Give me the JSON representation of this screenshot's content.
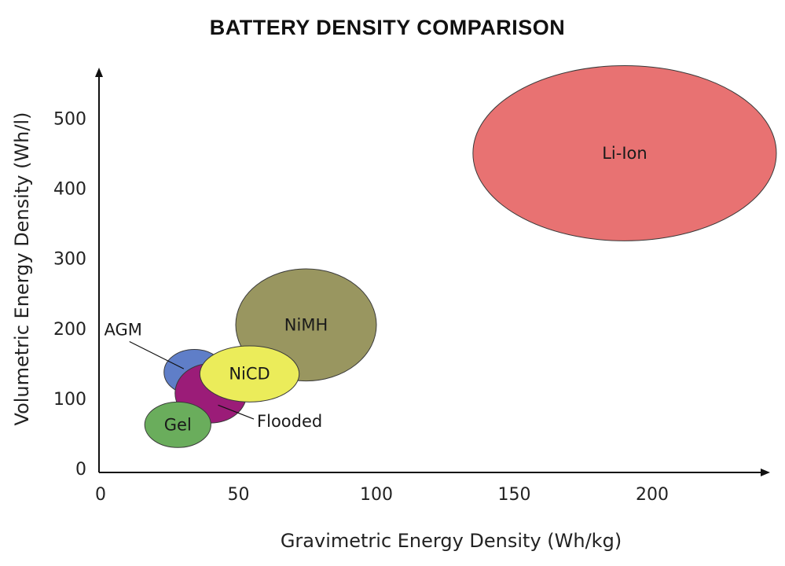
{
  "chart_data": {
    "type": "scatter",
    "title": "BATTERY DENSITY COMPARISON",
    "xlabel": "Gravimetric Energy Density (Wh/kg)",
    "ylabel": "Volumetric Energy Density (Wh/l)",
    "xlim": [
      0,
      245
    ],
    "ylim": [
      0,
      570
    ],
    "xticks": [
      0,
      50,
      100,
      150,
      200
    ],
    "yticks": [
      0,
      100,
      200,
      300,
      400,
      500
    ],
    "grid": false,
    "series": [
      {
        "name": "Li-Ion",
        "x_range": [
          135,
          245
        ],
        "y_range": [
          325,
          575
        ],
        "x": 190,
        "y": 450,
        "color": "#e87272",
        "label_pos": "center"
      },
      {
        "name": "NiMH",
        "x_range": [
          49,
          100
        ],
        "y_range": [
          125,
          285
        ],
        "x": 74.5,
        "y": 205,
        "color": "#999660",
        "label_pos": "center"
      },
      {
        "name": "AGM",
        "x_range": [
          23,
          45
        ],
        "y_range": [
          105,
          170
        ],
        "x": 34,
        "y": 137.5,
        "color": "#5f7ec8",
        "label_pos": "outside-left"
      },
      {
        "name": "Flooded",
        "x_range": [
          27,
          53
        ],
        "y_range": [
          65,
          150
        ],
        "x": 40,
        "y": 107.5,
        "color": "#9b1c78",
        "label_pos": "outside-right"
      },
      {
        "name": "NiCD",
        "x_range": [
          36,
          72
        ],
        "y_range": [
          95,
          175
        ],
        "x": 54,
        "y": 135,
        "color": "#ebec5a",
        "label_pos": "center"
      },
      {
        "name": "Gel",
        "x_range": [
          16,
          40
        ],
        "y_range": [
          30,
          95
        ],
        "x": 28,
        "y": 62.5,
        "color": "#6aad5c",
        "label_pos": "center"
      }
    ]
  }
}
